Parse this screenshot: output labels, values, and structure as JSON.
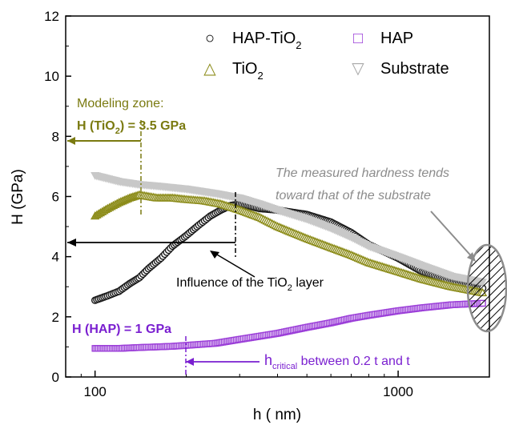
{
  "chart_data": {
    "type": "scatter",
    "xscale": "log",
    "xlim": [
      80,
      2000
    ],
    "ylim": [
      0,
      12
    ],
    "xlabel": "h ( nm)",
    "ylabel": "H (GPa)",
    "x_ticks": [
      100,
      1000
    ],
    "x_tick_labels": [
      "100",
      "1000"
    ],
    "y_ticks": [
      0,
      2,
      4,
      6,
      8,
      10,
      12
    ],
    "y_tick_labels": [
      "0",
      "2",
      "4",
      "6",
      "8",
      "10",
      "12"
    ],
    "grid": false,
    "legend": {
      "placement": "top-right",
      "items": [
        {
          "key": "hap_tio2",
          "symbol": "○",
          "text": "HAP-TiO",
          "sub": "2"
        },
        {
          "key": "hap",
          "symbol": "□",
          "text": "HAP",
          "sub": ""
        },
        {
          "key": "tio2",
          "symbol": "△",
          "text": "TiO",
          "sub": "2"
        },
        {
          "key": "substrate",
          "symbol": "▽",
          "text": "Substrate",
          "sub": ""
        }
      ]
    },
    "series": [
      {
        "key": "hap_tio2",
        "name": "HAP-TiO2",
        "color": "#1a1a1a",
        "marker": "circle",
        "points": [
          [
            100,
            2.55
          ],
          [
            110,
            2.7
          ],
          [
            120,
            2.85
          ],
          [
            130,
            3.1
          ],
          [
            140,
            3.3
          ],
          [
            150,
            3.6
          ],
          [
            165,
            3.95
          ],
          [
            180,
            4.35
          ],
          [
            200,
            4.7
          ],
          [
            220,
            5.05
          ],
          [
            240,
            5.35
          ],
          [
            260,
            5.55
          ],
          [
            280,
            5.7
          ],
          [
            300,
            5.75
          ],
          [
            350,
            5.6
          ],
          [
            400,
            5.55
          ],
          [
            500,
            5.4
          ],
          [
            600,
            5.15
          ],
          [
            700,
            4.8
          ],
          [
            800,
            4.4
          ],
          [
            1000,
            3.95
          ],
          [
            1200,
            3.5
          ],
          [
            1500,
            3.15
          ],
          [
            1900,
            2.95
          ]
        ]
      },
      {
        "key": "tio2",
        "name": "TiO2",
        "color": "#8c8c1a",
        "marker": "triangle-up",
        "points": [
          [
            100,
            5.35
          ],
          [
            110,
            5.6
          ],
          [
            120,
            5.8
          ],
          [
            130,
            5.95
          ],
          [
            140,
            6.05
          ],
          [
            160,
            5.95
          ],
          [
            180,
            5.95
          ],
          [
            200,
            5.9
          ],
          [
            230,
            5.85
          ],
          [
            260,
            5.75
          ],
          [
            300,
            5.55
          ],
          [
            350,
            5.3
          ],
          [
            400,
            5.0
          ],
          [
            500,
            4.6
          ],
          [
            600,
            4.3
          ],
          [
            700,
            4.05
          ],
          [
            800,
            3.8
          ],
          [
            1000,
            3.5
          ],
          [
            1200,
            3.25
          ],
          [
            1500,
            3.0
          ],
          [
            1900,
            2.8
          ]
        ]
      },
      {
        "key": "substrate",
        "name": "Substrate",
        "color": "#c8c8c8",
        "marker": "triangle-down",
        "points": [
          [
            100,
            6.7
          ],
          [
            120,
            6.5
          ],
          [
            140,
            6.4
          ],
          [
            160,
            6.35
          ],
          [
            200,
            6.25
          ],
          [
            250,
            6.1
          ],
          [
            300,
            5.95
          ],
          [
            350,
            5.75
          ],
          [
            400,
            5.55
          ],
          [
            500,
            5.25
          ],
          [
            600,
            4.95
          ],
          [
            700,
            4.65
          ],
          [
            800,
            4.35
          ],
          [
            1000,
            4.0
          ],
          [
            1200,
            3.7
          ],
          [
            1500,
            3.35
          ],
          [
            1900,
            3.15
          ]
        ]
      },
      {
        "key": "hap",
        "name": "HAP",
        "color": "#9b3ed8",
        "marker": "square",
        "points": [
          [
            100,
            0.95
          ],
          [
            120,
            0.95
          ],
          [
            140,
            0.98
          ],
          [
            160,
            1.0
          ],
          [
            180,
            1.02
          ],
          [
            200,
            1.05
          ],
          [
            250,
            1.12
          ],
          [
            300,
            1.25
          ],
          [
            400,
            1.45
          ],
          [
            500,
            1.65
          ],
          [
            600,
            1.8
          ],
          [
            700,
            1.95
          ],
          [
            800,
            2.05
          ],
          [
            1000,
            2.2
          ],
          [
            1200,
            2.3
          ],
          [
            1500,
            2.4
          ],
          [
            1900,
            2.45
          ]
        ]
      }
    ],
    "annotations": {
      "modeling_zone": "Modeling zone:",
      "h_tio2_prefix": "H (TiO",
      "h_tio2_sub": "2",
      "h_tio2_suffix": ") =  3.5 GPa",
      "measured_line1": "The measured hardness tends",
      "measured_line2": "toward that of the substrate",
      "influence_prefix": "Influence of the TiO",
      "influence_sub": "2",
      "influence_suffix": " layer",
      "h_hap": "H (HAP) = 1 GPa",
      "h_critical_main": "h",
      "h_critical_sub": "critical",
      "h_critical_rest": " between 0.2 t and t"
    },
    "colors": {
      "olive": "#7a7a10",
      "purple": "#7a1fd0",
      "gray_text": "#8c8c8c"
    }
  }
}
